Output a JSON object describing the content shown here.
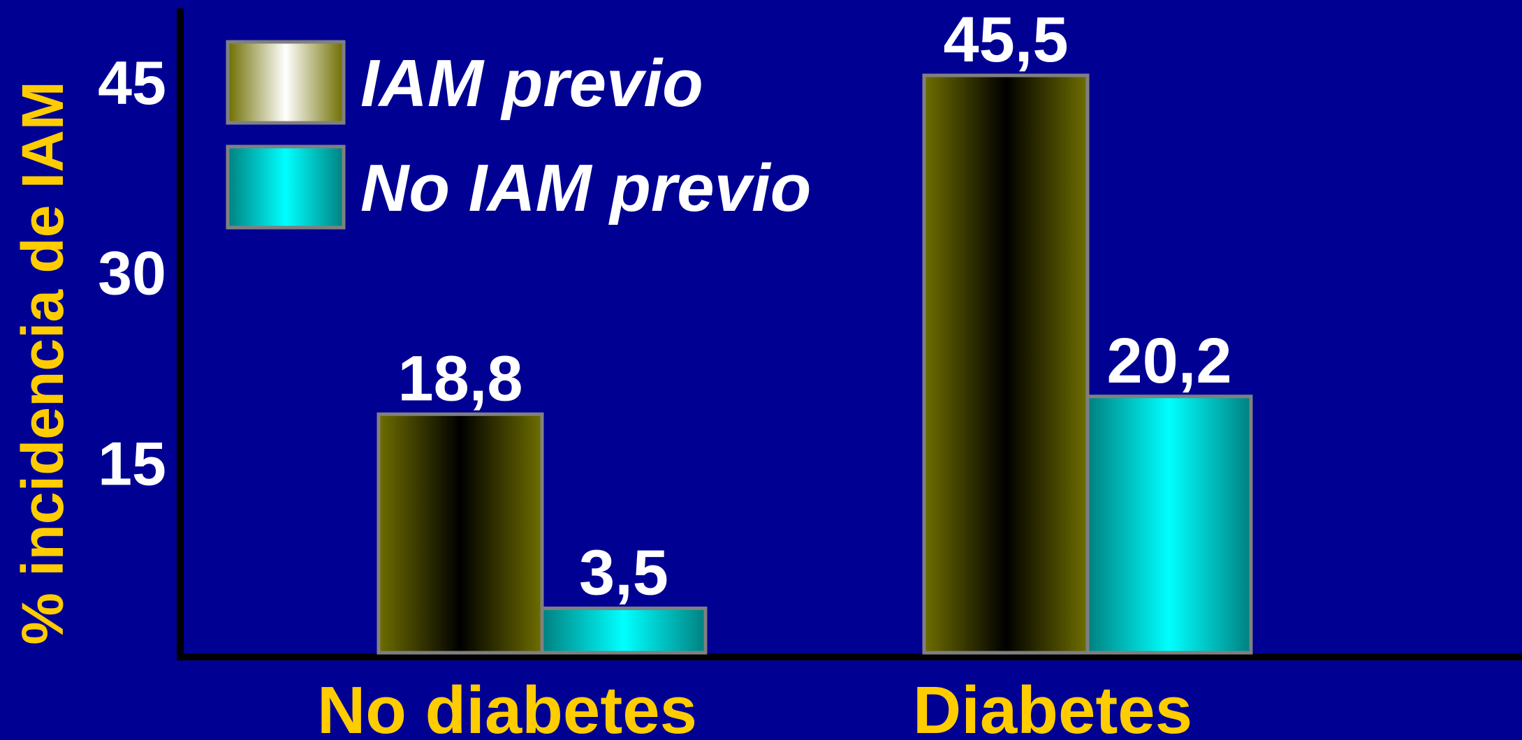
{
  "chart_data": {
    "type": "bar",
    "title": "",
    "xlabel": "",
    "ylabel": "% incidencia de IAM",
    "categories": [
      "No diabetes",
      "Diabetes"
    ],
    "series": [
      {
        "name": "IAM previo",
        "values": [
          18.8,
          45.5
        ],
        "value_labels": [
          "18,8",
          "45,5"
        ]
      },
      {
        "name": "No IAM previo",
        "values": [
          3.5,
          20.2
        ],
        "value_labels": [
          "3,5",
          "20,2"
        ]
      }
    ],
    "yticks": [
      15,
      30,
      45
    ],
    "ylim": [
      0,
      45.5
    ],
    "grid": false,
    "legend_position": "top-left"
  },
  "colors": {
    "background": "#000093",
    "axis": "#000000",
    "ylabel": "#FFCC00",
    "category_labels": "#FFCC00",
    "tick_labels": "#FFFFFF",
    "value_labels": "#FFFFFF",
    "legend_text": "#FFFFFF",
    "bar_border": "#808080",
    "iam_previo_edge": "#6E6E00",
    "iam_previo_center": "#000000",
    "no_iam_previo_edge": "#008080",
    "no_iam_previo_center": "#00FFFF",
    "legend_iam_previo_center": "#FFFFFF"
  }
}
